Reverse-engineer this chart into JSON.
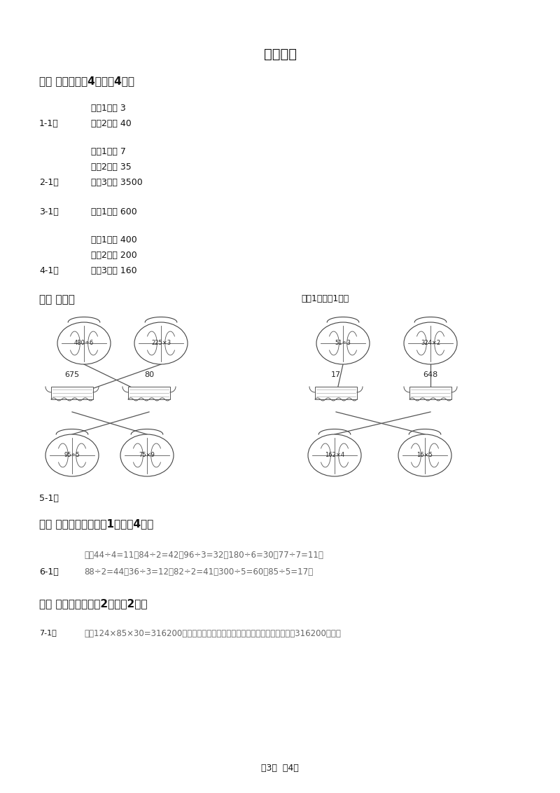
{
  "title": "参考答案",
  "bg_color": "#ffffff",
  "text_color": "#1a1a1a",
  "dark_color": "#111111",
  "gray_color": "#666666",
  "s1_header": "一、 填空。（共4题；共4分）",
  "item11_lines": [
    "《第1空》 3",
    "《第2空》 40"
  ],
  "item11_label": "1-1、",
  "item21_lines": [
    "《第1空》 7",
    "《第2空》 35",
    "《第3空》 3500"
  ],
  "item21_label": "2-1、",
  "item31_line": "《第1空》 600",
  "item31_label": "3-1、",
  "item41_lines": [
    "《第1空》 400",
    "《第2空》 200",
    "《第3空》 160"
  ],
  "item41_label": "4-1、",
  "s2_header": "二、 连线。",
  "s2_right": "（共1题；共1分）",
  "balls_top_labels": [
    "480÷6",
    "225×3",
    "51÷3",
    "324×2"
  ],
  "baskets_labels": [
    "675",
    "80",
    "17",
    "648"
  ],
  "balls_bot_labels": [
    "95÷5",
    "75×9",
    "162×4",
    "16×5"
  ],
  "label_51": "5-1、",
  "s3_header": "三、 列竖式计算。（共1题；共4分）",
  "s3_line1": "解：44÷4=11；84÷2=42；96÷3=32；180÷6=30；77÷7=11；",
  "s3_line2": "88÷2=44；36÷3=12；82÷2=41；300÷5=60；85÷5=17。",
  "s3_label": "6-1、",
  "s4_header": "四、 解决问题。（共2题；共2分）",
  "s4_label": "7-1、",
  "s4_text": "解：124×85×30=316200（吨）答：这个森林公园的森林一个月可从地下吸出316200吨水。",
  "footer": "第3页  共4页"
}
